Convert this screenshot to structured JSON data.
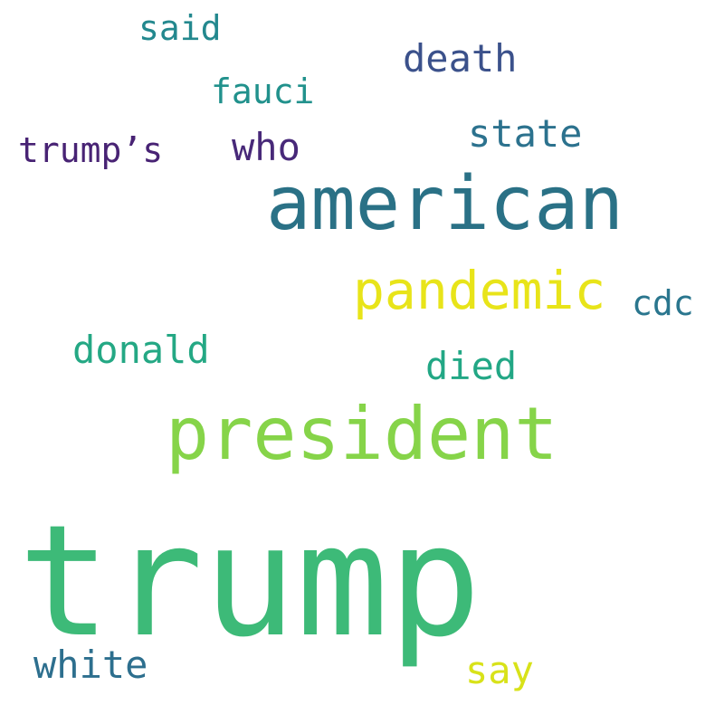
{
  "words": [
    {
      "key": "trump",
      "text": "trump",
      "color": "#3dba78"
    },
    {
      "key": "president",
      "text": "president",
      "color": "#86d449"
    },
    {
      "key": "american",
      "text": "american",
      "color": "#2a7186"
    },
    {
      "key": "pandemic",
      "text": "pandemic",
      "color": "#e8e419"
    },
    {
      "key": "donald",
      "text": "donald",
      "color": "#24a884"
    },
    {
      "key": "who",
      "text": "who",
      "color": "#482979"
    },
    {
      "key": "state",
      "text": "state",
      "color": "#2c728e"
    },
    {
      "key": "death",
      "text": "death",
      "color": "#3b518b"
    },
    {
      "key": "trumps",
      "text": "trump’s",
      "color": "#482374"
    },
    {
      "key": "fauci",
      "text": "fauci",
      "color": "#21918c"
    },
    {
      "key": "said",
      "text": "said",
      "color": "#23888e"
    },
    {
      "key": "cdc",
      "text": "cdc",
      "color": "#2a768e"
    },
    {
      "key": "died",
      "text": "died",
      "color": "#22a785"
    },
    {
      "key": "white",
      "text": "white",
      "color": "#2d6f8e"
    },
    {
      "key": "say",
      "text": "say",
      "color": "#d8e219"
    }
  ]
}
